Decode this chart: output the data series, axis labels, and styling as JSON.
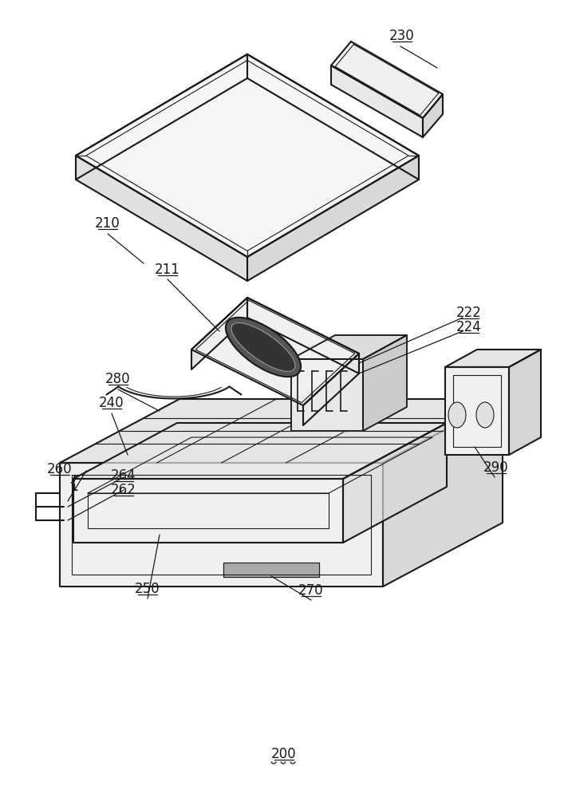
{
  "bg_color": "#ffffff",
  "lc": "#1a1a1a",
  "lw": 1.5,
  "tlw": 0.8,
  "fig_width": 7.12,
  "fig_height": 10.0,
  "dpi": 100
}
